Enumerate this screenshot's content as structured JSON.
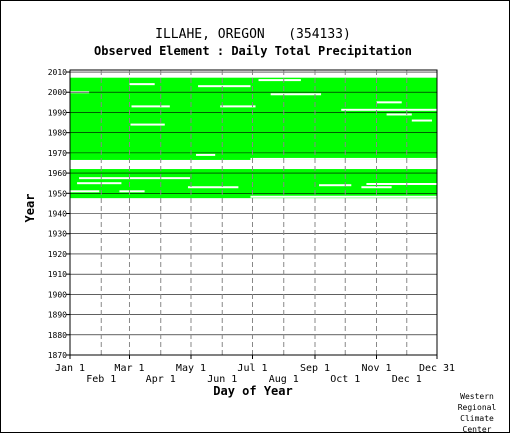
{
  "chart_data": {
    "type": "heatmap",
    "title": "ILLAHE, OREGON   (354133)",
    "subtitle": "Observed Element : Daily Total Precipitation",
    "xlabel": "Day of Year",
    "ylabel": "Year",
    "xlim": [
      1,
      365
    ],
    "ylim": [
      1870,
      2011
    ],
    "y_ticks": [
      1870,
      1880,
      1890,
      1900,
      1910,
      1920,
      1930,
      1940,
      1950,
      1960,
      1970,
      1980,
      1990,
      2000,
      2010
    ],
    "x_ticks_upper": [
      {
        "label": "Jan 1",
        "day": 1
      },
      {
        "label": "Mar 1",
        "day": 60
      },
      {
        "label": "May 1",
        "day": 121
      },
      {
        "label": "Jul 1",
        "day": 182
      },
      {
        "label": "Sep 1",
        "day": 244
      },
      {
        "label": "Nov 1",
        "day": 305
      },
      {
        "label": "Dec 31",
        "day": 365
      }
    ],
    "x_ticks_lower": [
      {
        "label": "Feb 1",
        "day": 32
      },
      {
        "label": "Apr 1",
        "day": 91
      },
      {
        "label": "Jun 1",
        "day": 152
      },
      {
        "label": "Aug 1",
        "day": 213
      },
      {
        "label": "Oct 1",
        "day": 274
      },
      {
        "label": "Dec 1",
        "day": 335
      }
    ],
    "month_start_days": [
      32,
      60,
      91,
      121,
      152,
      182,
      213,
      244,
      274,
      305,
      335
    ],
    "grid": true,
    "data_color": "#00ff00",
    "coverage": [
      {
        "start_year": 1947.6,
        "start_day": 1,
        "end_year": 1962,
        "end_day": 365
      },
      {
        "start_year": 1966.5,
        "start_day": 1,
        "end_year": 2007.2,
        "end_day": 365
      }
    ],
    "gaps": [
      {
        "year": 1948.3,
        "day_from": 180,
        "day_to": 365
      },
      {
        "year": 1951.0,
        "day_from": 1,
        "day_to": 30
      },
      {
        "year": 1951.0,
        "day_from": 50,
        "day_to": 75
      },
      {
        "year": 1953.0,
        "day_from": 118,
        "day_to": 168
      },
      {
        "year": 1953.0,
        "day_from": 290,
        "day_to": 320
      },
      {
        "year": 1954.0,
        "day_from": 248,
        "day_to": 280
      },
      {
        "year": 1954.6,
        "day_from": 295,
        "day_to": 365
      },
      {
        "year": 1955.0,
        "day_from": 8,
        "day_to": 52
      },
      {
        "year": 1957.5,
        "day_from": 10,
        "day_to": 120
      },
      {
        "year": 1967.0,
        "day_from": 180,
        "day_to": 365
      },
      {
        "year": 1969.0,
        "day_from": 126,
        "day_to": 145
      },
      {
        "year": 1984.0,
        "day_from": 61,
        "day_to": 95
      },
      {
        "year": 1989.0,
        "day_from": 315,
        "day_to": 340
      },
      {
        "year": 1986.0,
        "day_from": 340,
        "day_to": 360
      },
      {
        "year": 1991.3,
        "day_from": 270,
        "day_to": 365
      },
      {
        "year": 1993.0,
        "day_from": 62,
        "day_to": 100
      },
      {
        "year": 1993.0,
        "day_from": 150,
        "day_to": 185
      },
      {
        "year": 1995.0,
        "day_from": 305,
        "day_to": 330
      },
      {
        "year": 1999.0,
        "day_from": 200,
        "day_to": 250
      },
      {
        "year": 2000.0,
        "day_from": 1,
        "day_to": 20
      },
      {
        "year": 2003.0,
        "day_from": 128,
        "day_to": 180
      },
      {
        "year": 2004.0,
        "day_from": 60,
        "day_to": 85
      },
      {
        "year": 2006.0,
        "day_from": 188,
        "day_to": 230
      }
    ]
  },
  "footer": {
    "credit_lines": [
      "Western",
      "Regional",
      "Climate",
      "Center"
    ]
  }
}
